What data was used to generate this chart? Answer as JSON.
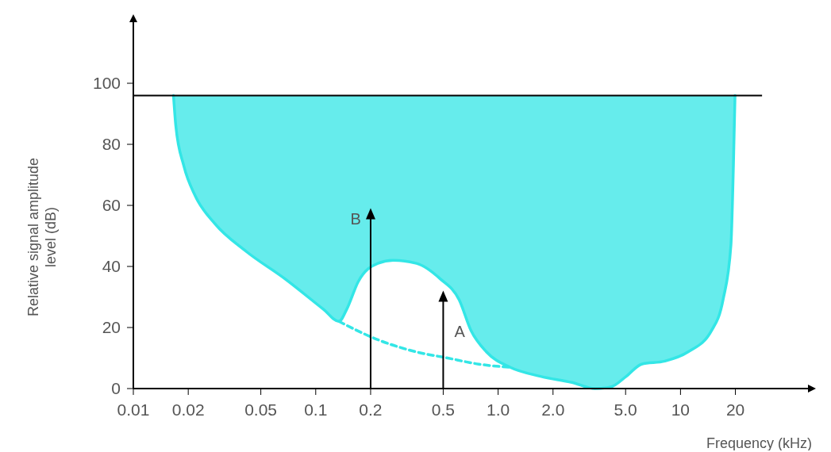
{
  "chart_data": {
    "type": "line",
    "xlabel": "Frequency (kHz)",
    "ylabel": "Relative signal amplitude level (dB)",
    "log": "x",
    "xlim": [
      0.01,
      50
    ],
    "ylim": [
      0,
      120
    ],
    "xticks": [
      0.01,
      0.02,
      0.05,
      0.1,
      0.2,
      0.5,
      {
        "value": 1,
        "label": "1.0"
      },
      {
        "value": 2,
        "label": "2.0"
      },
      {
        "value": 5,
        "label": "5.0"
      },
      10,
      20
    ],
    "yticks": [
      0,
      20,
      40,
      60,
      80,
      100
    ],
    "grid": false,
    "marker": "none",
    "series": [
      {
        "color": "#33e6e6",
        "line_style": "solid",
        "x": [
          0.0166,
          0.0171,
          0.0189,
          0.0219,
          0.028,
          0.0414,
          0.0676,
          0.11,
          0.134,
          0.148,
          0.171,
          0.219,
          0.266,
          0.357,
          0.48,
          0.612,
          0.71,
          0.863,
          1.16,
          1.71,
          2.54,
          3.4,
          4.14,
          5.04,
          6.12,
          8.22,
          11,
          14.8,
          17.1,
          18.9,
          19.5,
          19.9
        ],
        "values": [
          96,
          86,
          73,
          63,
          54,
          45,
          36,
          26,
          22,
          26,
          35,
          41,
          42,
          41,
          36,
          29,
          19,
          12,
          7,
          4,
          2,
          0,
          0.5,
          4,
          8,
          9,
          12,
          19,
          29,
          47,
          73,
          96
        ],
        "lower": [
          96,
          86,
          73,
          63,
          54,
          45,
          36,
          26,
          22,
          26,
          35,
          41,
          42,
          41,
          36,
          29,
          19,
          12,
          7,
          4,
          2,
          0,
          0.5,
          4,
          8,
          9,
          12,
          19,
          29,
          47,
          73,
          96
        ],
        "upper": [
          96,
          96,
          96,
          96,
          96,
          96,
          96,
          96,
          96,
          96,
          96,
          96,
          96,
          96,
          96,
          96,
          96,
          96,
          96,
          96,
          96,
          96,
          96,
          96,
          96,
          96,
          96,
          96,
          96,
          96,
          96,
          96
        ]
      },
      {
        "color": "#33e6e6",
        "line_style": "dashed",
        "x": [
          0.134,
          0.219,
          0.357,
          0.529,
          0.783,
          1.16
        ],
        "values": [
          22,
          16,
          12,
          10,
          8,
          7
        ]
      },
      {
        "type": "lollipop",
        "name": "B",
        "color": "#000000",
        "marker": "triangle",
        "x": [
          0.2
        ],
        "values": [
          57
        ]
      },
      {
        "type": "lollipop",
        "name": "A",
        "color": "#000000",
        "marker": "triangle",
        "x": [
          0.5
        ],
        "values": [
          30
        ]
      }
    ],
    "ref_lines": [
      {
        "axis": "y",
        "value": 96,
        "color": "#000000"
      }
    ]
  }
}
